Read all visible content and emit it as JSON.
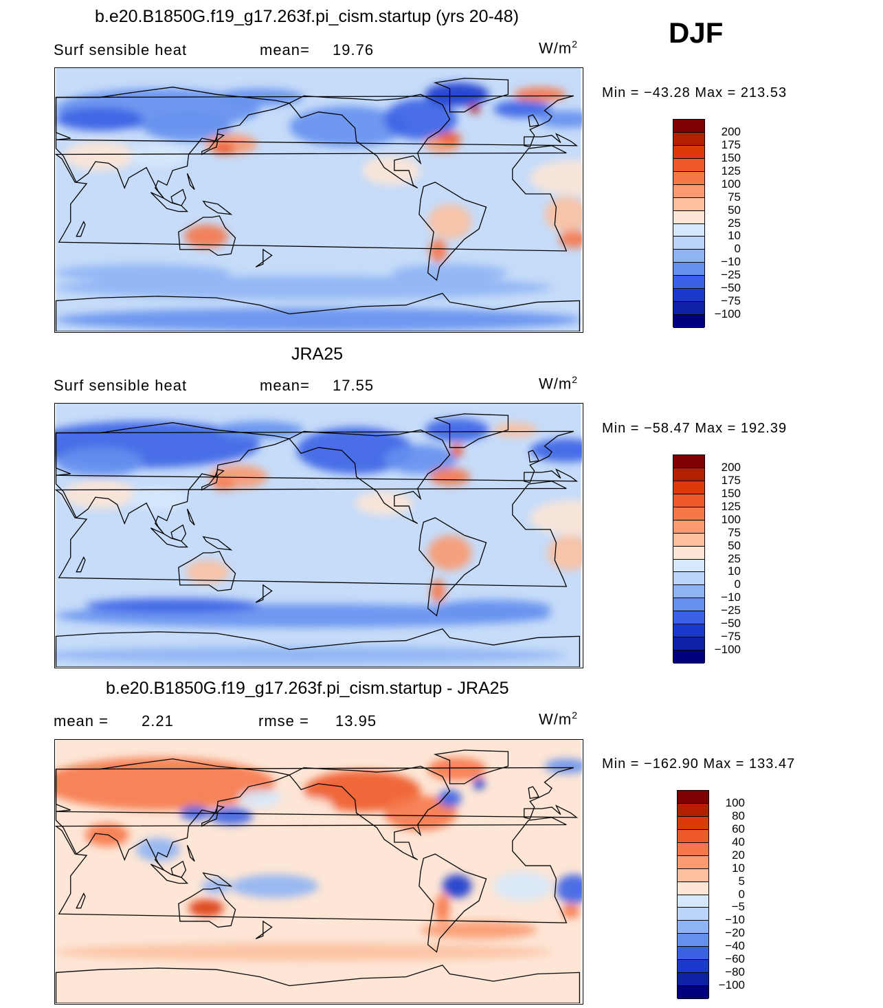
{
  "season": "DJF",
  "panels": [
    {
      "title": "b.e20.B1850G.f19_g17.263f.pi_cism.startup (yrs 20-48)",
      "left_label": "Surf  sensible  heat",
      "mid_label": "mean=",
      "mid_value": "19.76",
      "units": "W/m",
      "units_sup": "2",
      "min_label": "Min  =",
      "min_value": "−43.28",
      "max_label": "Max  =",
      "max_value": "213.53",
      "levels": [
        "200",
        "175",
        "150",
        "125",
        "100",
        "75",
        "50",
        "25",
        "10",
        "0",
        "−10",
        "−25",
        "−50",
        "−75",
        "−100"
      ],
      "colors": [
        "#7f0000",
        "#b22000",
        "#dc3a0a",
        "#ee5a2a",
        "#f6784a",
        "#fa9a70",
        "#fcc0a0",
        "#fde6d6",
        "#d6e8fb",
        "#bcd4f8",
        "#8fb4f4",
        "#6590ee",
        "#3c62e4",
        "#1b39cc",
        "#0d22a6",
        "#00007f"
      ],
      "bg": "#c6dcf9"
    },
    {
      "title": "JRA25",
      "left_label": "Surf  sensible  heat",
      "mid_label": "mean=",
      "mid_value": "17.55",
      "units": "W/m",
      "units_sup": "2",
      "min_label": "Min  =",
      "min_value": "−58.47",
      "max_label": "Max  =",
      "max_value": "192.39",
      "levels": [
        "200",
        "175",
        "150",
        "125",
        "100",
        "75",
        "50",
        "25",
        "10",
        "0",
        "−10",
        "−25",
        "−50",
        "−75",
        "−100"
      ],
      "colors": [
        "#7f0000",
        "#b22000",
        "#dc3a0a",
        "#ee5a2a",
        "#f6784a",
        "#fa9a70",
        "#fcc0a0",
        "#fde6d6",
        "#d6e8fb",
        "#bcd4f8",
        "#8fb4f4",
        "#6590ee",
        "#3c62e4",
        "#1b39cc",
        "#0d22a6",
        "#00007f"
      ],
      "bg": "#c6dcf9"
    },
    {
      "title": "b.e20.B1850G.f19_g17.263f.pi_cism.startup - JRA25",
      "left_label": "mean  =",
      "left_value": "2.21",
      "mid_label": "rmse  =",
      "mid_value": "13.95",
      "units": "W/m",
      "units_sup": "2",
      "min_label": "Min  =",
      "min_value": "−162.90",
      "max_label": "Max  =",
      "max_value": "133.47",
      "levels": [
        "100",
        "80",
        "60",
        "40",
        "20",
        "10",
        "5",
        "0",
        "−5",
        "−10",
        "−20",
        "−40",
        "−60",
        "−80",
        "−100"
      ],
      "colors": [
        "#7f0000",
        "#b22000",
        "#dc3a0a",
        "#ee5a2a",
        "#f6784a",
        "#fa9a70",
        "#fcc0a0",
        "#fde6d6",
        "#d6e8fb",
        "#bcd4f8",
        "#8fb4f4",
        "#6590ee",
        "#3c62e4",
        "#1b39cc",
        "#0d22a6",
        "#00007f"
      ],
      "bg": "#fde6d6"
    }
  ]
}
